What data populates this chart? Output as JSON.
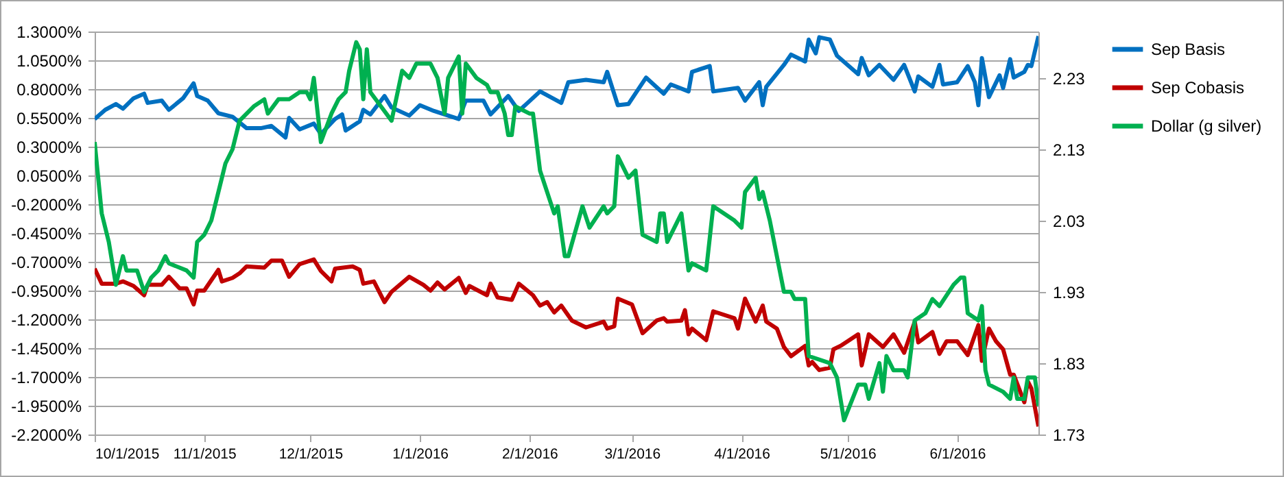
{
  "chart_data": {
    "type": "line",
    "legend": "right",
    "grid": "y",
    "xlim": [
      "2015-10-01",
      "2016-06-24"
    ],
    "xticks": [
      {
        "value": "2015-10-01",
        "label": "10/1/2015"
      },
      {
        "value": "2015-11-01",
        "label": "11/1/2015"
      },
      {
        "value": "2015-12-01",
        "label": "12/1/2015"
      },
      {
        "value": "2016-01-01",
        "label": "1/1/2016"
      },
      {
        "value": "2016-02-01",
        "label": "2/1/2016"
      },
      {
        "value": "2016-03-01",
        "label": "3/1/2016"
      },
      {
        "value": "2016-04-01",
        "label": "4/1/2016"
      },
      {
        "value": "2016-05-01",
        "label": "5/1/2016"
      },
      {
        "value": "2016-06-01",
        "label": "6/1/2016"
      }
    ],
    "ylim": [
      -2.2,
      1.3
    ],
    "yticks": [
      {
        "value": 1.3,
        "label": "1.3000%"
      },
      {
        "value": 1.05,
        "label": "1.0500%"
      },
      {
        "value": 0.8,
        "label": "0.8000%"
      },
      {
        "value": 0.55,
        "label": "0.5500%"
      },
      {
        "value": 0.3,
        "label": "0.3000%"
      },
      {
        "value": 0.05,
        "label": "0.0500%"
      },
      {
        "value": -0.2,
        "label": "-0.2000%"
      },
      {
        "value": -0.45,
        "label": "-0.4500%"
      },
      {
        "value": -0.7,
        "label": "-0.7000%"
      },
      {
        "value": -0.95,
        "label": "-0.9500%"
      },
      {
        "value": -1.2,
        "label": "-1.2000%"
      },
      {
        "value": -1.45,
        "label": "-1.4500%"
      },
      {
        "value": -1.7,
        "label": "-1.7000%"
      },
      {
        "value": -1.95,
        "label": "-1.9500%"
      },
      {
        "value": -2.2,
        "label": "-2.2000%"
      }
    ],
    "y2lim": [
      1.73,
      2.295
    ],
    "y2ticks": [
      1.73,
      1.83,
      1.93,
      2.03,
      2.13,
      2.23
    ],
    "series": [
      {
        "name": "Sep Basis",
        "color": "#0070c0",
        "x": [
          "2015-10-01",
          "2015-10-04",
          "2015-10-07",
          "2015-10-09",
          "2015-10-12",
          "2015-10-15",
          "2015-10-16",
          "2015-10-20",
          "2015-10-22",
          "2015-10-26",
          "2015-10-29",
          "2015-10-30",
          "2015-11-02",
          "2015-11-05",
          "2015-11-09",
          "2015-11-13",
          "2015-11-17",
          "2015-11-20",
          "2015-11-24",
          "2015-11-25",
          "2015-11-28",
          "2015-12-02",
          "2015-12-04",
          "2015-12-08",
          "2015-12-10",
          "2015-12-11",
          "2015-12-15",
          "2015-12-16",
          "2015-12-18",
          "2015-12-22",
          "2015-12-24",
          "2015-12-29",
          "2016-01-01",
          "2016-01-05",
          "2016-01-12",
          "2016-01-14",
          "2016-01-19",
          "2016-01-21",
          "2016-01-26",
          "2016-01-29",
          "2016-02-04",
          "2016-02-10",
          "2016-02-12",
          "2016-02-17",
          "2016-02-22",
          "2016-02-23",
          "2016-02-26",
          "2016-02-29",
          "2016-03-05",
          "2016-03-10",
          "2016-03-12",
          "2016-03-17",
          "2016-03-18",
          "2016-03-23",
          "2016-03-24",
          "2016-03-31",
          "2016-04-02",
          "2016-04-06",
          "2016-04-07",
          "2016-04-08",
          "2016-04-13",
          "2016-04-15",
          "2016-04-19",
          "2016-04-20",
          "2016-04-22",
          "2016-04-23",
          "2016-04-26",
          "2016-04-28",
          "2016-05-04",
          "2016-05-05",
          "2016-05-07",
          "2016-05-10",
          "2016-05-14",
          "2016-05-17",
          "2016-05-20",
          "2016-05-21",
          "2016-05-25",
          "2016-05-27",
          "2016-05-28",
          "2016-06-01",
          "2016-06-04",
          "2016-06-06",
          "2016-06-07",
          "2016-06-08",
          "2016-06-10",
          "2016-06-13",
          "2016-06-14",
          "2016-06-16",
          "2016-06-17",
          "2016-06-20",
          "2016-06-21",
          "2016-06-22",
          "2016-06-24"
        ],
        "values": [
          0.54,
          0.62,
          0.67,
          0.63,
          0.72,
          0.76,
          0.68,
          0.7,
          0.62,
          0.72,
          0.85,
          0.74,
          0.7,
          0.59,
          0.56,
          0.46,
          0.46,
          0.48,
          0.38,
          0.55,
          0.45,
          0.5,
          0.41,
          0.54,
          0.58,
          0.44,
          0.52,
          0.62,
          0.58,
          0.74,
          0.64,
          0.57,
          0.66,
          0.61,
          0.54,
          0.7,
          0.7,
          0.58,
          0.74,
          0.61,
          0.78,
          0.68,
          0.86,
          0.88,
          0.86,
          0.95,
          0.66,
          0.67,
          0.9,
          0.76,
          0.84,
          0.78,
          0.95,
          1.0,
          0.78,
          0.81,
          0.7,
          0.86,
          0.66,
          0.82,
          1.01,
          1.1,
          1.04,
          1.23,
          1.11,
          1.25,
          1.23,
          1.09,
          0.93,
          1.07,
          0.92,
          1.01,
          0.88,
          1.01,
          0.78,
          0.91,
          0.82,
          1.01,
          0.84,
          0.86,
          1.0,
          0.86,
          0.66,
          1.07,
          0.73,
          0.92,
          0.81,
          1.06,
          0.9,
          0.95,
          1.01,
          1.0,
          1.26
        ]
      },
      {
        "name": "Sep Cobasis",
        "color": "#c00000",
        "x": [
          "2015-10-01",
          "2015-10-03",
          "2015-10-07",
          "2015-10-09",
          "2015-10-12",
          "2015-10-15",
          "2015-10-16",
          "2015-10-20",
          "2015-10-22",
          "2015-10-25",
          "2015-10-27",
          "2015-10-29",
          "2015-10-30",
          "2015-11-01",
          "2015-11-05",
          "2015-11-06",
          "2015-11-09",
          "2015-11-11",
          "2015-11-13",
          "2015-11-18",
          "2015-11-20",
          "2015-11-23",
          "2015-11-25",
          "2015-11-28",
          "2015-12-02",
          "2015-12-04",
          "2015-12-07",
          "2015-12-08",
          "2015-12-13",
          "2015-12-15",
          "2015-12-16",
          "2015-12-19",
          "2015-12-22",
          "2015-12-24",
          "2015-12-29",
          "2016-01-02",
          "2016-01-04",
          "2016-01-06",
          "2016-01-08",
          "2016-01-12",
          "2016-01-14",
          "2016-01-15",
          "2016-01-20",
          "2016-01-21",
          "2016-01-23",
          "2016-01-27",
          "2016-01-29",
          "2016-02-02",
          "2016-02-04",
          "2016-02-06",
          "2016-02-08",
          "2016-02-10",
          "2016-02-13",
          "2016-02-17",
          "2016-02-22",
          "2016-02-23",
          "2016-02-25",
          "2016-02-26",
          "2016-03-01",
          "2016-03-04",
          "2016-03-08",
          "2016-03-10",
          "2016-03-11",
          "2016-03-15",
          "2016-03-16",
          "2016-03-17",
          "2016-03-18",
          "2016-03-22",
          "2016-03-24",
          "2016-03-30",
          "2016-03-31",
          "2016-04-02",
          "2016-04-05",
          "2016-04-07",
          "2016-04-08",
          "2016-04-11",
          "2016-04-13",
          "2016-04-15",
          "2016-04-19",
          "2016-04-20",
          "2016-04-21",
          "2016-04-23",
          "2016-04-26",
          "2016-04-27",
          "2016-04-29",
          "2016-05-01",
          "2016-05-04",
          "2016-05-05",
          "2016-05-07",
          "2016-05-11",
          "2016-05-14",
          "2016-05-17",
          "2016-05-20",
          "2016-05-21",
          "2016-05-25",
          "2016-05-27",
          "2016-05-29",
          "2016-06-01",
          "2016-06-04",
          "2016-06-07",
          "2016-06-08",
          "2016-06-10",
          "2016-06-12",
          "2016-06-14",
          "2016-06-16",
          "2016-06-17",
          "2016-06-20",
          "2016-06-21",
          "2016-06-22",
          "2016-06-24"
        ],
        "values": [
          -0.76,
          -0.89,
          -0.89,
          -0.87,
          -0.91,
          -0.99,
          -0.9,
          -0.9,
          -0.83,
          -0.93,
          -0.93,
          -1.07,
          -0.95,
          -0.95,
          -0.77,
          -0.87,
          -0.84,
          -0.8,
          -0.74,
          -0.75,
          -0.69,
          -0.69,
          -0.83,
          -0.72,
          -0.68,
          -0.78,
          -0.87,
          -0.76,
          -0.74,
          -0.77,
          -0.89,
          -0.87,
          -1.05,
          -0.96,
          -0.83,
          -0.9,
          -0.95,
          -0.88,
          -0.94,
          -0.84,
          -0.97,
          -0.91,
          -0.99,
          -0.89,
          -1.01,
          -1.03,
          -0.89,
          -0.99,
          -1.08,
          -1.05,
          -1.14,
          -1.08,
          -1.21,
          -1.27,
          -1.22,
          -1.28,
          -1.26,
          -1.02,
          -1.07,
          -1.32,
          -1.21,
          -1.19,
          -1.22,
          -1.21,
          -1.12,
          -1.33,
          -1.28,
          -1.38,
          -1.13,
          -1.19,
          -1.28,
          -1.02,
          -1.22,
          -1.08,
          -1.22,
          -1.28,
          -1.44,
          -1.52,
          -1.43,
          -1.6,
          -1.57,
          -1.64,
          -1.62,
          -1.46,
          -1.43,
          -1.39,
          -1.33,
          -1.6,
          -1.33,
          -1.44,
          -1.33,
          -1.49,
          -1.22,
          -1.4,
          -1.31,
          -1.5,
          -1.39,
          -1.39,
          -1.51,
          -1.25,
          -1.56,
          -1.28,
          -1.39,
          -1.46,
          -1.68,
          -1.68,
          -1.92,
          -1.74,
          -1.8,
          -2.13
        ]
      },
      {
        "name": "Dollar (g silver)",
        "color": "#00b050",
        "axis": "y2",
        "x": [
          "2015-10-01",
          "2015-10-03",
          "2015-10-05",
          "2015-10-07",
          "2015-10-09",
          "2015-10-10",
          "2015-10-13",
          "2015-10-15",
          "2015-10-17",
          "2015-10-19",
          "2015-10-21",
          "2015-10-22",
          "2015-10-27",
          "2015-10-29",
          "2015-10-30",
          "2015-11-01",
          "2015-11-03",
          "2015-11-05",
          "2015-11-07",
          "2015-11-09",
          "2015-11-11",
          "2015-11-15",
          "2015-11-18",
          "2015-11-19",
          "2015-11-22",
          "2015-11-25",
          "2015-11-28",
          "2015-11-30",
          "2015-12-01",
          "2015-12-02",
          "2015-12-04",
          "2015-12-07",
          "2015-12-09",
          "2015-12-11",
          "2015-12-12",
          "2015-12-14",
          "2015-12-15",
          "2015-12-16",
          "2015-12-17",
          "2015-12-18",
          "2015-12-21",
          "2015-12-24",
          "2015-12-27",
          "2015-12-29",
          "2015-12-31",
          "2016-01-04",
          "2016-01-06",
          "2016-01-08",
          "2016-01-09",
          "2016-01-12",
          "2016-01-13",
          "2016-01-14",
          "2016-01-17",
          "2016-01-20",
          "2016-01-21",
          "2016-01-23",
          "2016-01-25",
          "2016-01-26",
          "2016-01-27",
          "2016-01-28",
          "2016-02-01",
          "2016-02-02",
          "2016-02-04",
          "2016-02-08",
          "2016-02-09",
          "2016-02-11",
          "2016-02-12",
          "2016-02-16",
          "2016-02-18",
          "2016-02-22",
          "2016-02-23",
          "2016-02-25",
          "2016-02-26",
          "2016-02-29",
          "2016-03-02",
          "2016-03-04",
          "2016-03-08",
          "2016-03-09",
          "2016-03-10",
          "2016-03-11",
          "2016-03-15",
          "2016-03-17",
          "2016-03-18",
          "2016-03-22",
          "2016-03-24",
          "2016-03-30",
          "2016-04-01",
          "2016-04-02",
          "2016-04-05",
          "2016-04-06",
          "2016-04-07",
          "2016-04-09",
          "2016-04-13",
          "2016-04-15",
          "2016-04-16",
          "2016-04-19",
          "2016-04-20",
          "2016-04-26",
          "2016-04-28",
          "2016-04-30",
          "2016-05-04",
          "2016-05-06",
          "2016-05-07",
          "2016-05-10",
          "2016-05-11",
          "2016-05-12",
          "2016-05-14",
          "2016-05-17",
          "2016-05-18",
          "2016-05-20",
          "2016-05-23",
          "2016-05-25",
          "2016-05-27",
          "2016-05-31",
          "2016-06-02",
          "2016-06-03",
          "2016-06-04",
          "2016-06-07",
          "2016-06-08",
          "2016-06-09",
          "2016-06-10",
          "2016-06-14",
          "2016-06-16",
          "2016-06-17",
          "2016-06-18",
          "2016-06-20",
          "2016-06-21",
          "2016-06-23",
          "2016-06-24"
        ],
        "values": [
          2.14,
          2.04,
          2.0,
          1.94,
          1.98,
          1.96,
          1.96,
          1.93,
          1.95,
          1.96,
          1.98,
          1.97,
          1.96,
          1.95,
          2.0,
          2.01,
          2.03,
          2.07,
          2.11,
          2.13,
          2.17,
          2.19,
          2.2,
          2.18,
          2.2,
          2.2,
          2.21,
          2.21,
          2.2,
          2.23,
          2.14,
          2.18,
          2.2,
          2.21,
          2.24,
          2.28,
          2.27,
          2.2,
          2.27,
          2.21,
          2.19,
          2.17,
          2.24,
          2.23,
          2.25,
          2.25,
          2.23,
          2.18,
          2.23,
          2.26,
          2.18,
          2.25,
          2.23,
          2.22,
          2.21,
          2.21,
          2.18,
          2.15,
          2.15,
          2.19,
          2.18,
          2.18,
          2.1,
          2.04,
          2.05,
          1.98,
          1.98,
          2.05,
          2.02,
          2.05,
          2.04,
          2.05,
          2.12,
          2.09,
          2.1,
          2.01,
          2.0,
          2.04,
          2.04,
          2.0,
          2.04,
          1.96,
          1.97,
          1.96,
          2.05,
          2.03,
          2.02,
          2.07,
          2.09,
          2.06,
          2.07,
          2.03,
          1.93,
          1.93,
          1.92,
          1.92,
          1.84,
          1.83,
          1.81,
          1.75,
          1.8,
          1.8,
          1.78,
          1.83,
          1.79,
          1.84,
          1.82,
          1.82,
          1.81,
          1.89,
          1.9,
          1.92,
          1.91,
          1.94,
          1.95,
          1.95,
          1.9,
          1.89,
          1.91,
          1.82,
          1.8,
          1.79,
          1.78,
          1.81,
          1.78,
          1.78,
          1.81,
          1.81,
          1.77
        ]
      }
    ]
  }
}
